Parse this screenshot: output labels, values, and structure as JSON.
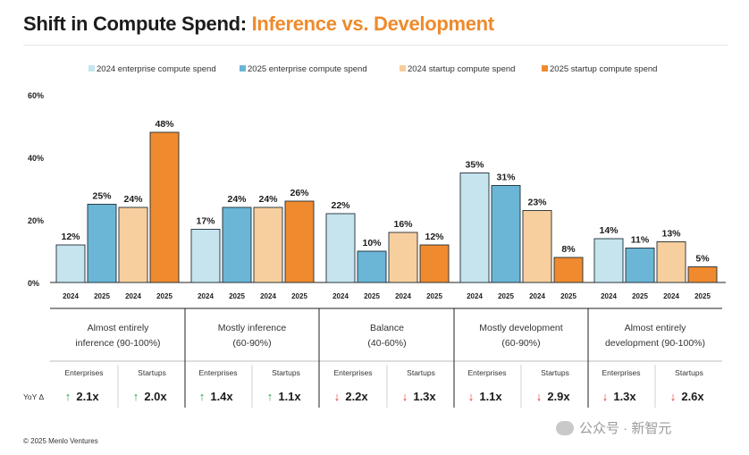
{
  "title": {
    "part1": "Shift in Compute Spend:",
    "part2": "Inference vs. Development"
  },
  "colors": {
    "title_black": "#1c1c1c",
    "title_orange": "#ee8a2c",
    "up_arrow": "#2e9e4f",
    "down_arrow": "#e0332d"
  },
  "chart_data": {
    "type": "bar",
    "ylim": [
      0,
      60
    ],
    "y_ticks": [
      "0%",
      "20%",
      "40%",
      "60%"
    ],
    "y_tick_values": [
      0,
      20,
      40,
      60
    ],
    "grid": false,
    "legend_position": "top",
    "series": [
      {
        "name": "2024 enterprise compute spend",
        "color": "#c5e4ee",
        "values": [
          12,
          17,
          22,
          35,
          14
        ]
      },
      {
        "name": "2025 enterprise compute spend",
        "color": "#6bb6d6",
        "values": [
          25,
          24,
          10,
          31,
          11
        ]
      },
      {
        "name": "2024 startup compute spend",
        "color": "#f7ce9d",
        "values": [
          24,
          24,
          16,
          23,
          13
        ]
      },
      {
        "name": "2025 startup compute spend",
        "color": "#ef8a2e",
        "values": [
          48,
          26,
          12,
          8,
          5
        ]
      }
    ],
    "bar_year_labels": [
      "2024",
      "2025",
      "2024",
      "2025"
    ],
    "data_labels_suffix": "%",
    "groups": [
      {
        "line1": "Almost entirely",
        "line2": "inference (90-100%)"
      },
      {
        "line1": "Mostly inference",
        "line2": "(60-90%)"
      },
      {
        "line1": "Balance",
        "line2": "(40-60%)"
      },
      {
        "line1": "Mostly development",
        "line2": "(60-90%)"
      },
      {
        "line1": "Almost entirely",
        "line2": "development (90-100%)"
      }
    ],
    "sub_headers": [
      "Enterprises",
      "Startups"
    ],
    "yoy_label": "YoY Δ",
    "yoy": [
      [
        {
          "dir": "up",
          "value": "2.1x"
        },
        {
          "dir": "up",
          "value": "2.0x"
        }
      ],
      [
        {
          "dir": "up",
          "value": "1.4x"
        },
        {
          "dir": "up",
          "value": "1.1x"
        }
      ],
      [
        {
          "dir": "down",
          "value": "2.2x"
        },
        {
          "dir": "down",
          "value": "1.3x"
        }
      ],
      [
        {
          "dir": "down",
          "value": "1.1x"
        },
        {
          "dir": "down",
          "value": "2.9x"
        }
      ],
      [
        {
          "dir": "down",
          "value": "1.3x"
        },
        {
          "dir": "down",
          "value": "2.6x"
        }
      ]
    ]
  },
  "footer": {
    "copyright": "© 2025 Menlo Ventures",
    "watermark": "公众号 · 新智元"
  }
}
